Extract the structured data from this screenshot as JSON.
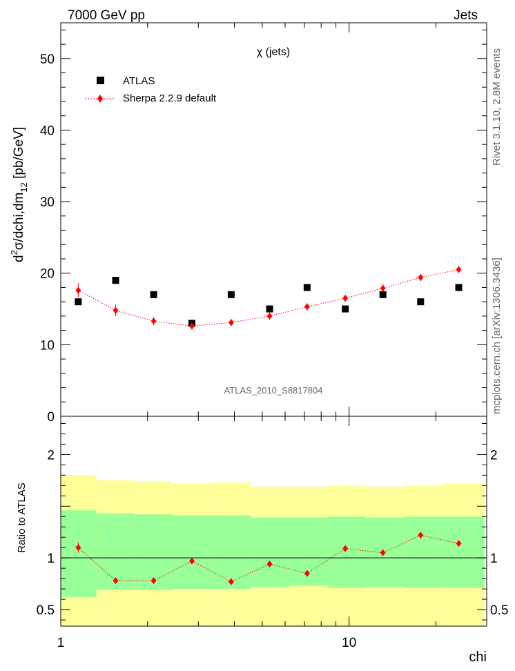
{
  "header": {
    "left": "7000 GeV pp",
    "right": "Jets"
  },
  "side_text": {
    "rivet": "Rivet 3.1.10,  2.8M events",
    "mcplots": "mcplots.cern.ch [arXiv:1306.3436]"
  },
  "colors": {
    "mc": "#ff0000",
    "band_inner": "#99ff99",
    "band_outer": "#ffff99",
    "data": "#000000"
  },
  "chart_data": [
    {
      "type": "scatter",
      "title": "χ (jets)",
      "analysis_label": "ATLAS_2010_S8817804",
      "xlabel": "chi",
      "ylabel": "d²σ/dchi,dm₁₂ [pb/GeV]",
      "ylabel_parts": {
        "a": "d",
        "b": "2",
        "c": "σ/dchi,dm",
        "d": "12",
        "e": " [pb/GeV]"
      },
      "xscale": "log",
      "xlim": [
        1,
        30
      ],
      "ylim": [
        0,
        55
      ],
      "yticks": [
        0,
        10,
        20,
        30,
        40,
        50
      ],
      "ytick_labels": [
        "0",
        "10",
        "20",
        "30",
        "40",
        "50"
      ],
      "legend": {
        "position": "top-left",
        "entries": [
          "ATLAS",
          "Sherpa 2.2.9 default"
        ]
      },
      "x": [
        1.15,
        1.55,
        2.1,
        2.85,
        3.9,
        5.3,
        7.15,
        9.7,
        13.1,
        17.7,
        24.0
      ],
      "series": [
        {
          "name": "ATLAS",
          "marker": "square",
          "values": [
            16.0,
            19.0,
            17.0,
            13.0,
            17.0,
            15.0,
            18.0,
            15.0,
            17.0,
            16.0,
            18.0
          ]
        },
        {
          "name": "Sherpa 2.2.9 default",
          "marker": "diamond",
          "values": [
            17.6,
            14.8,
            13.3,
            12.6,
            13.1,
            14.0,
            15.3,
            16.5,
            17.9,
            19.4,
            20.5
          ],
          "errors": [
            1.0,
            0.8,
            0.6,
            0.5,
            0.5,
            0.5,
            0.5,
            0.5,
            0.6,
            0.5,
            0.5
          ]
        }
      ]
    },
    {
      "type": "scatter",
      "title": "Ratio to ATLAS",
      "xlabel": "chi",
      "ylabel": "Ratio to ATLAS",
      "xscale": "log",
      "xlim": [
        1,
        30
      ],
      "ylim": [
        0.34,
        2.37
      ],
      "yticks": [
        0.5,
        1,
        2
      ],
      "ytick_labels": [
        "0.5",
        "1",
        "2"
      ],
      "xtick_labels": [
        "1",
        "10"
      ],
      "reference_line": 1,
      "bin_edges": [
        0.92,
        1.33,
        1.8,
        2.45,
        3.35,
        4.55,
        6.2,
        8.45,
        11.4,
        15.5,
        21.0,
        29.5
      ],
      "band_outer_lo": [
        0.34,
        0.34,
        0.34,
        0.34,
        0.34,
        0.34,
        0.34,
        0.34,
        0.34,
        0.34,
        0.34
      ],
      "band_outer_hi": [
        1.8,
        1.75,
        1.74,
        1.72,
        1.73,
        1.69,
        1.69,
        1.7,
        1.69,
        1.7,
        1.72
      ],
      "band_inner_lo": [
        0.62,
        0.69,
        0.69,
        0.7,
        0.7,
        0.72,
        0.73,
        0.71,
        0.72,
        0.71,
        0.71
      ],
      "band_inner_hi": [
        1.46,
        1.43,
        1.42,
        1.41,
        1.41,
        1.39,
        1.39,
        1.4,
        1.39,
        1.4,
        1.4
      ],
      "x": [
        1.15,
        1.55,
        2.1,
        2.85,
        3.9,
        5.3,
        7.15,
        9.7,
        13.1,
        17.7,
        24.0
      ],
      "series": [
        {
          "name": "Sherpa 2.2.9 default",
          "marker": "diamond",
          "values": [
            1.1,
            0.78,
            0.78,
            0.97,
            0.77,
            0.94,
            0.85,
            1.09,
            1.05,
            1.22,
            1.14
          ],
          "errors": [
            0.05,
            0.03,
            0.03,
            0.03,
            0.03,
            0.03,
            0.03,
            0.03,
            0.03,
            0.03,
            0.03
          ]
        }
      ]
    }
  ]
}
